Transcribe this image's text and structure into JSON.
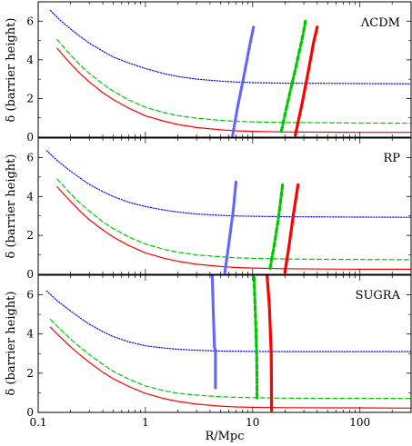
{
  "figure": {
    "xlabel": "R/Mpc",
    "ylabel": "δ (barrier height)"
  },
  "chart_data": [
    {
      "type": "line",
      "panel_label": "ΛCDM",
      "xscale": "log",
      "xlim": [
        0.1,
        300
      ],
      "ylim": [
        0,
        7
      ],
      "yticks": [
        0,
        2,
        4,
        6
      ],
      "series": [
        {
          "color": "#0000ff",
          "style": "dotted",
          "width": 1.2,
          "x": [
            0.13,
            0.16,
            0.2,
            0.25,
            0.3,
            0.4,
            0.5,
            0.7,
            1,
            1.5,
            2,
            3,
            5,
            7,
            10,
            20,
            50,
            100,
            300
          ],
          "y": [
            6.55,
            6.05,
            5.6,
            5.18,
            4.86,
            4.45,
            4.15,
            3.84,
            3.55,
            3.28,
            3.14,
            3.0,
            2.9,
            2.85,
            2.82,
            2.79,
            2.78,
            2.77,
            2.76
          ]
        },
        {
          "color": "#00c800",
          "style": "dashed",
          "width": 1.2,
          "x": [
            0.15,
            0.2,
            0.25,
            0.3,
            0.4,
            0.5,
            0.7,
            1,
            1.5,
            2,
            3,
            5,
            7,
            10,
            20,
            50,
            100,
            300
          ],
          "y": [
            5.05,
            4.25,
            3.7,
            3.3,
            2.75,
            2.38,
            1.92,
            1.55,
            1.27,
            1.12,
            0.98,
            0.87,
            0.82,
            0.79,
            0.76,
            0.74,
            0.73,
            0.72
          ]
        },
        {
          "color": "#ff0000",
          "style": "solid",
          "width": 1.2,
          "x": [
            0.15,
            0.2,
            0.25,
            0.3,
            0.4,
            0.5,
            0.7,
            1,
            1.5,
            2,
            3,
            5,
            7,
            10,
            20,
            50,
            100,
            300
          ],
          "y": [
            4.6,
            3.8,
            3.25,
            2.85,
            2.3,
            1.95,
            1.5,
            1.1,
            0.82,
            0.66,
            0.5,
            0.38,
            0.33,
            0.3,
            0.27,
            0.26,
            0.25,
            0.25
          ]
        },
        {
          "color": "#6464ff",
          "style": "dotted",
          "width": 3.2,
          "x": [
            6.5,
            7.2,
            8.3,
            9.5,
            10.2
          ],
          "y": [
            0.1,
            1.5,
            3.2,
            4.9,
            5.7
          ]
        },
        {
          "color": "#00c800",
          "style": "dashed",
          "width": 3.2,
          "x": [
            18.5,
            21,
            25,
            29.5,
            31
          ],
          "y": [
            0.3,
            1.7,
            3.5,
            5.3,
            6.0
          ]
        },
        {
          "color": "#ff0000",
          "style": "solid",
          "width": 3.2,
          "x": [
            25,
            29,
            33,
            37,
            40
          ],
          "y": [
            0.1,
            1.8,
            3.4,
            4.9,
            5.7
          ]
        }
      ]
    },
    {
      "type": "line",
      "panel_label": "RP",
      "xscale": "log",
      "xlim": [
        0.1,
        300
      ],
      "ylim": [
        0,
        7
      ],
      "yticks": [
        0,
        2,
        4,
        6
      ],
      "series": [
        {
          "color": "#0000ff",
          "style": "dotted",
          "width": 1.2,
          "x": [
            0.12,
            0.15,
            0.2,
            0.25,
            0.3,
            0.4,
            0.5,
            0.7,
            1,
            1.5,
            2,
            3,
            5,
            7,
            10,
            20,
            50,
            100,
            300
          ],
          "y": [
            6.35,
            5.85,
            5.3,
            4.92,
            4.62,
            4.25,
            4.0,
            3.7,
            3.48,
            3.3,
            3.2,
            3.1,
            3.03,
            3.0,
            2.98,
            2.96,
            2.95,
            2.94,
            2.93
          ]
        },
        {
          "color": "#00c800",
          "style": "dashed",
          "width": 1.2,
          "x": [
            0.15,
            0.2,
            0.25,
            0.3,
            0.4,
            0.5,
            0.7,
            1,
            1.5,
            2,
            3,
            5,
            7,
            10,
            20,
            50,
            100,
            300
          ],
          "y": [
            4.9,
            4.15,
            3.62,
            3.25,
            2.7,
            2.35,
            1.92,
            1.56,
            1.28,
            1.14,
            1.0,
            0.9,
            0.85,
            0.82,
            0.79,
            0.77,
            0.76,
            0.75
          ]
        },
        {
          "color": "#ff0000",
          "style": "solid",
          "width": 1.2,
          "x": [
            0.15,
            0.2,
            0.25,
            0.3,
            0.4,
            0.5,
            0.7,
            1,
            1.5,
            2,
            3,
            5,
            7,
            10,
            20,
            50,
            100,
            300
          ],
          "y": [
            4.5,
            3.75,
            3.2,
            2.8,
            2.28,
            1.92,
            1.48,
            1.1,
            0.82,
            0.67,
            0.52,
            0.4,
            0.35,
            0.32,
            0.29,
            0.27,
            0.26,
            0.26
          ]
        },
        {
          "color": "#6464ff",
          "style": "dotted",
          "width": 3.2,
          "x": [
            5.5,
            6.0,
            6.6,
            7.0
          ],
          "y": [
            0.1,
            1.6,
            3.3,
            4.8
          ]
        },
        {
          "color": "#00c800",
          "style": "dashed",
          "width": 3.2,
          "x": [
            14.5,
            16,
            17.5,
            19
          ],
          "y": [
            0.3,
            1.6,
            3.0,
            4.6
          ]
        },
        {
          "color": "#ff0000",
          "style": "solid",
          "width": 3.2,
          "x": [
            20,
            22,
            24,
            26.5
          ],
          "y": [
            0.1,
            1.6,
            3.1,
            4.6
          ]
        }
      ]
    },
    {
      "type": "line",
      "panel_label": "SUGRA",
      "xscale": "log",
      "xlim": [
        0.1,
        300
      ],
      "ylim": [
        0,
        7
      ],
      "yticks": [
        0,
        2,
        4,
        6
      ],
      "series": [
        {
          "color": "#0000ff",
          "style": "dotted",
          "width": 1.2,
          "x": [
            0.12,
            0.15,
            0.2,
            0.25,
            0.3,
            0.4,
            0.5,
            0.7,
            1,
            1.5,
            2,
            3,
            5,
            7,
            10,
            20,
            50,
            100,
            300
          ],
          "y": [
            6.2,
            5.7,
            5.18,
            4.8,
            4.5,
            4.12,
            3.87,
            3.6,
            3.4,
            3.28,
            3.22,
            3.17,
            3.13,
            3.12,
            3.11,
            3.1,
            3.1,
            3.1,
            3.1
          ]
        },
        {
          "color": "#00c800",
          "style": "dashed",
          "width": 1.2,
          "x": [
            0.13,
            0.15,
            0.2,
            0.25,
            0.3,
            0.4,
            0.5,
            0.7,
            1,
            1.5,
            2,
            3,
            5,
            7,
            10,
            20,
            50,
            100,
            300
          ],
          "y": [
            4.75,
            4.4,
            3.75,
            3.3,
            2.95,
            2.45,
            2.1,
            1.7,
            1.35,
            1.1,
            0.98,
            0.88,
            0.8,
            0.77,
            0.75,
            0.73,
            0.72,
            0.72,
            0.71
          ]
        },
        {
          "color": "#ff0000",
          "style": "solid",
          "width": 1.2,
          "x": [
            0.13,
            0.15,
            0.2,
            0.25,
            0.3,
            0.4,
            0.5,
            0.7,
            1,
            1.5,
            2,
            3,
            5,
            7,
            10,
            20,
            50,
            100,
            300
          ],
          "y": [
            4.35,
            4.0,
            3.35,
            2.9,
            2.55,
            2.05,
            1.72,
            1.32,
            0.97,
            0.7,
            0.56,
            0.42,
            0.32,
            0.28,
            0.26,
            0.24,
            0.23,
            0.23,
            0.22
          ]
        },
        {
          "color": "#6464ff",
          "style": "dotted",
          "width": 3.2,
          "x": [
            4.2,
            4.3,
            4.4,
            4.5,
            4.5
          ],
          "y": [
            7.0,
            5.0,
            3.3,
            3.2,
            1.2
          ]
        },
        {
          "color": "#00c800",
          "style": "dashed",
          "width": 3.2,
          "x": [
            10.3,
            10.6,
            10.9,
            11.0
          ],
          "y": [
            6.9,
            5.0,
            3.0,
            0.6
          ]
        },
        {
          "color": "#ff0000",
          "style": "solid",
          "width": 3.2,
          "x": [
            13.6,
            14.3,
            14.9,
            15.0
          ],
          "y": [
            7.0,
            5.5,
            3.0,
            0.1
          ]
        }
      ]
    }
  ]
}
